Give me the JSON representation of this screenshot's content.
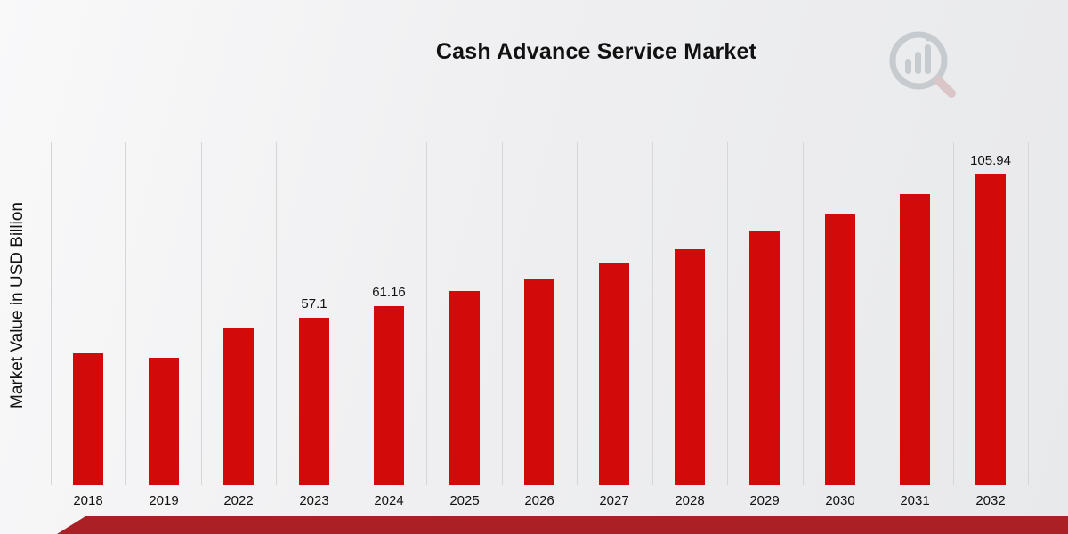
{
  "chart_data": {
    "type": "bar",
    "title": "Cash Advance Service Market",
    "ylabel": "Market Value in USD Billion",
    "xlabel": "",
    "legend": "none",
    "grid": "vertical",
    "ylim": [
      0,
      117
    ],
    "bar_color": "#d20a0a",
    "categories": [
      "2018",
      "2019",
      "2022",
      "2023",
      "2024",
      "2025",
      "2026",
      "2027",
      "2028",
      "2029",
      "2030",
      "2031",
      "2032"
    ],
    "values": [
      45.0,
      43.5,
      53.5,
      57.1,
      61.16,
      66.2,
      70.4,
      75.6,
      80.5,
      86.5,
      92.6,
      99.3,
      105.94
    ],
    "data_labels": [
      "",
      "",
      "",
      "57.1",
      "61.16",
      "",
      "",
      "",
      "",
      "",
      "",
      "",
      "105.94"
    ]
  },
  "footer": {
    "stripe_color": "#ab2025"
  },
  "logo": {
    "icon": "bar-chart-magnifier-logo",
    "color": "#c3c8cd",
    "handle_color": "#d9c2c4"
  }
}
